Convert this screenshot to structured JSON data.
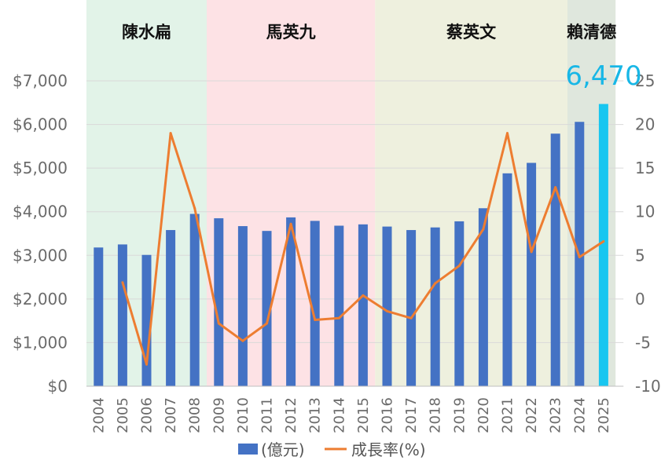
{
  "chart_data": {
    "type": "bar",
    "title": "",
    "categories": [
      "2004",
      "2005",
      "2006",
      "2007",
      "2008",
      "2009",
      "2010",
      "2011",
      "2012",
      "2013",
      "2014",
      "2015",
      "2016",
      "2017",
      "2018",
      "2019",
      "2020",
      "2021",
      "2022",
      "2023",
      "2024",
      "2025"
    ],
    "series": [
      {
        "name": "(億元)",
        "type": "bar",
        "axis": "left",
        "color": "#4472c4",
        "highlight_color": "#18c6f0",
        "highlight_index": 21,
        "values": [
          3180,
          3250,
          3010,
          3580,
          3950,
          3850,
          3670,
          3560,
          3870,
          3790,
          3680,
          3710,
          3660,
          3580,
          3640,
          3780,
          4080,
          4880,
          5120,
          5790,
          6060,
          6470
        ]
      },
      {
        "name": "成長率(%)",
        "type": "line",
        "axis": "right",
        "color": "#ed7d31",
        "values": [
          null,
          1.9,
          -7.5,
          19.0,
          10.4,
          -2.8,
          -4.8,
          -2.8,
          8.6,
          -2.4,
          -2.2,
          0.4,
          -1.4,
          -2.2,
          1.8,
          3.8,
          8.0,
          19.0,
          5.4,
          12.8,
          4.8,
          6.6
        ]
      }
    ],
    "y_left": {
      "ylim": [
        0,
        7000
      ],
      "ticks": [
        "$0",
        "$1,000",
        "$2,000",
        "$3,000",
        "$4,000",
        "$5,000",
        "$6,000",
        "$7,000"
      ]
    },
    "y_right": {
      "ylim": [
        -10,
        25
      ],
      "ticks": [
        "-10",
        "-5",
        "0",
        "5",
        "10",
        "15",
        "20",
        "25"
      ]
    },
    "eras": [
      {
        "label": "陳水扁",
        "from": "2004",
        "to": "2008",
        "color": "#e2f3e8"
      },
      {
        "label": "馬英九",
        "from": "2009",
        "to": "2015",
        "color": "#fde2e5"
      },
      {
        "label": "蔡英文",
        "from": "2016",
        "to": "2023",
        "color": "#eef0de"
      },
      {
        "label": "賴清德",
        "from": "2024",
        "to": "2025",
        "color": "#dfe7dd"
      }
    ],
    "callout": "6,470",
    "legend_position": "bottom",
    "grid": true
  }
}
